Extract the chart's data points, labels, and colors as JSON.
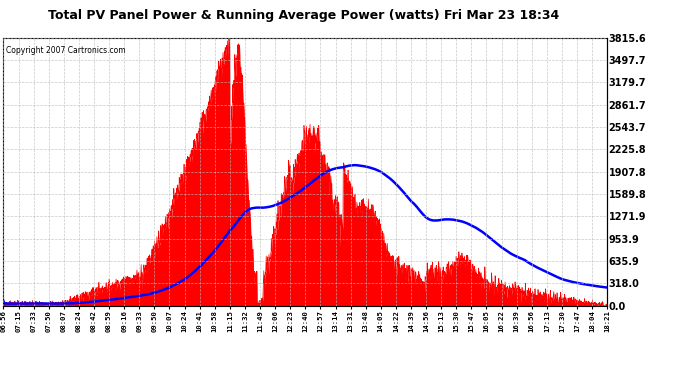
{
  "title": "Total PV Panel Power & Running Average Power (watts) Fri Mar 23 18:34",
  "copyright": "Copyright 2007 Cartronics.com",
  "background_color": "#ffffff",
  "plot_bg_color": "#ffffff",
  "grid_color": "#bbbbbb",
  "fill_color": "#ff0000",
  "line_color": "#0000ff",
  "ytick_labels": [
    "0.0",
    "318.0",
    "635.9",
    "953.9",
    "1271.9",
    "1589.8",
    "1907.8",
    "2225.8",
    "2543.7",
    "2861.7",
    "3179.7",
    "3497.7",
    "3815.6"
  ],
  "ytick_values": [
    0.0,
    318.0,
    635.9,
    953.9,
    1271.9,
    1589.8,
    1907.8,
    2225.8,
    2543.7,
    2861.7,
    3179.7,
    3497.7,
    3815.6
  ],
  "ymax": 3815.6,
  "xtick_labels": [
    "06:56",
    "07:15",
    "07:33",
    "07:50",
    "08:07",
    "08:24",
    "08:42",
    "08:59",
    "09:16",
    "09:33",
    "09:50",
    "10:07",
    "10:24",
    "10:41",
    "10:58",
    "11:15",
    "11:32",
    "11:49",
    "12:06",
    "12:23",
    "12:40",
    "12:57",
    "13:14",
    "13:31",
    "13:48",
    "14:05",
    "14:22",
    "14:39",
    "14:56",
    "15:13",
    "15:30",
    "15:47",
    "16:05",
    "16:22",
    "16:39",
    "16:56",
    "17:13",
    "17:30",
    "17:47",
    "18:04",
    "18:21"
  ]
}
